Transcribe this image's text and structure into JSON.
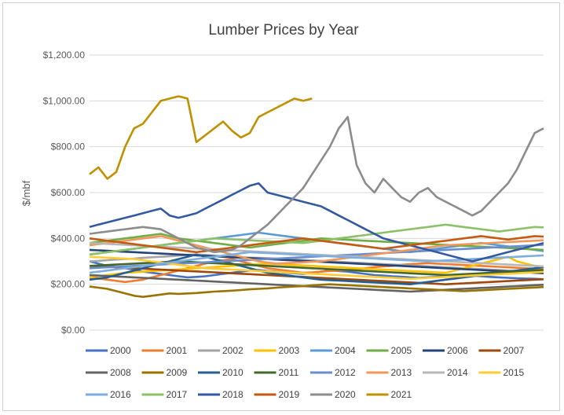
{
  "chart_data": {
    "type": "line",
    "title": "Lumber Prices by Year",
    "ylabel": "$/mbf",
    "xlabel": "",
    "ylim": [
      0,
      1200
    ],
    "y_ticks": [
      "$0.00",
      "$200.00",
      "$400.00",
      "$600.00",
      "$800.00",
      "$1,000.00",
      "$1,200.00"
    ],
    "y_tick_values": [
      0,
      200,
      400,
      600,
      800,
      1000,
      1200
    ],
    "x_range": [
      1,
      52
    ],
    "grid": true,
    "legend_position": "bottom",
    "series": [
      {
        "name": "2000",
        "color": "#4472c4",
        "values": [
          300,
          290,
          280,
          275,
          270,
          265,
          255,
          250,
          245,
          240,
          235,
          230,
          232,
          235,
          240,
          245,
          250,
          255,
          260,
          262,
          258,
          255,
          250,
          248,
          245,
          250,
          255,
          260,
          258,
          255,
          250,
          245,
          240,
          238,
          235,
          233,
          230,
          228,
          230,
          232,
          235,
          238,
          240,
          238,
          235,
          232,
          230,
          228,
          226,
          225,
          224,
          222
        ]
      },
      {
        "name": "2001",
        "color": "#ed7d31",
        "values": [
          230,
          225,
          220,
          215,
          210,
          215,
          220,
          230,
          240,
          250,
          260,
          270,
          280,
          290,
          300,
          305,
          310,
          300,
          290,
          280,
          270,
          265,
          260,
          255,
          250,
          252,
          255,
          258,
          260,
          262,
          265,
          270,
          275,
          278,
          280,
          285,
          288,
          290,
          292,
          290,
          288,
          286,
          284,
          282,
          280,
          278,
          276,
          274,
          272,
          270,
          268,
          266
        ]
      },
      {
        "name": "2002",
        "color": "#a5a5a5",
        "values": [
          300,
          302,
          305,
          308,
          310,
          312,
          315,
          318,
          320,
          322,
          325,
          328,
          330,
          328,
          325,
          322,
          320,
          318,
          316,
          315,
          314,
          312,
          310,
          308,
          306,
          304,
          302,
          300,
          298,
          296,
          294,
          292,
          290,
          288,
          286,
          284,
          282,
          280,
          278,
          276,
          274,
          272,
          270,
          268,
          266,
          264,
          262,
          260,
          258,
          256,
          254,
          252
        ]
      },
      {
        "name": "2003",
        "color": "#ffc000",
        "values": [
          230,
          235,
          240,
          245,
          250,
          252,
          255,
          258,
          260,
          262,
          265,
          268,
          270,
          272,
          275,
          278,
          280,
          282,
          285,
          288,
          290,
          288,
          286,
          284,
          282,
          280,
          278,
          276,
          274,
          272,
          270,
          268,
          266,
          264,
          262,
          260,
          258,
          256,
          254,
          252,
          250,
          260,
          270,
          280,
          290,
          300,
          310,
          320,
          300,
          290,
          280,
          270
        ]
      },
      {
        "name": "2004",
        "color": "#5b9bd5",
        "values": [
          330,
          335,
          340,
          345,
          350,
          355,
          360,
          365,
          370,
          375,
          380,
          385,
          390,
          395,
          400,
          405,
          410,
          415,
          420,
          425,
          420,
          415,
          410,
          405,
          400,
          395,
          390,
          385,
          380,
          375,
          370,
          365,
          360,
          355,
          350,
          345,
          340,
          345,
          350,
          355,
          360,
          365,
          370,
          375,
          380,
          375,
          370,
          365,
          360,
          355,
          350,
          345
        ]
      },
      {
        "name": "2005",
        "color": "#70ad47",
        "values": [
          380,
          385,
          390,
          395,
          400,
          405,
          410,
          415,
          420,
          410,
          400,
          395,
          390,
          385,
          380,
          375,
          370,
          365,
          360,
          365,
          370,
          375,
          380,
          385,
          390,
          395,
          400,
          398,
          396,
          394,
          392,
          390,
          388,
          386,
          384,
          382,
          380,
          378,
          376,
          374,
          372,
          370,
          368,
          366,
          364,
          362,
          360,
          358,
          356,
          354,
          352,
          350
        ]
      },
      {
        "name": "2006",
        "color": "#264478",
        "values": [
          350,
          348,
          346,
          344,
          342,
          340,
          338,
          336,
          334,
          332,
          330,
          328,
          326,
          324,
          322,
          320,
          318,
          316,
          314,
          312,
          310,
          308,
          306,
          304,
          302,
          300,
          298,
          296,
          294,
          292,
          290,
          288,
          286,
          284,
          282,
          280,
          278,
          276,
          274,
          272,
          270,
          268,
          266,
          264,
          262,
          260,
          258,
          256,
          254,
          252,
          250,
          248
        ]
      },
      {
        "name": "2007",
        "color": "#9e480e",
        "values": [
          280,
          278,
          276,
          274,
          272,
          270,
          268,
          266,
          264,
          262,
          260,
          258,
          256,
          254,
          252,
          250,
          248,
          246,
          244,
          242,
          240,
          238,
          236,
          234,
          232,
          230,
          228,
          226,
          224,
          222,
          220,
          218,
          216,
          214,
          212,
          210,
          208,
          206,
          204,
          202,
          200,
          202,
          204,
          206,
          208,
          210,
          212,
          214,
          216,
          218,
          220,
          222
        ]
      },
      {
        "name": "2008",
        "color": "#636363",
        "values": [
          240,
          238,
          236,
          234,
          232,
          230,
          228,
          226,
          224,
          222,
          220,
          218,
          216,
          214,
          212,
          210,
          208,
          206,
          204,
          202,
          200,
          198,
          196,
          194,
          192,
          190,
          188,
          186,
          184,
          182,
          180,
          178,
          176,
          174,
          172,
          170,
          168,
          170,
          172,
          174,
          176,
          178,
          180,
          182,
          184,
          186,
          188,
          190,
          192,
          194,
          196,
          198
        ]
      },
      {
        "name": "2009",
        "color": "#997300",
        "values": [
          190,
          185,
          180,
          170,
          160,
          150,
          145,
          150,
          155,
          160,
          158,
          160,
          162,
          165,
          168,
          170,
          172,
          175,
          178,
          180,
          182,
          185,
          188,
          190,
          192,
          195,
          198,
          200,
          198,
          196,
          194,
          192,
          190,
          188,
          186,
          184,
          182,
          180,
          178,
          176,
          174,
          172,
          170,
          172,
          174,
          176,
          178,
          180,
          182,
          184,
          186,
          188
        ]
      },
      {
        "name": "2010",
        "color": "#255e91",
        "values": [
          220,
          225,
          230,
          240,
          250,
          260,
          270,
          280,
          290,
          300,
          310,
          320,
          330,
          320,
          310,
          300,
          290,
          280,
          270,
          260,
          250,
          245,
          240,
          235,
          230,
          225,
          220,
          218,
          216,
          214,
          212,
          210,
          208,
          206,
          204,
          202,
          200,
          205,
          210,
          215,
          220,
          225,
          230,
          235,
          240,
          245,
          250,
          255,
          260,
          265,
          270,
          275
        ]
      },
      {
        "name": "2011",
        "color": "#43682b",
        "values": [
          280,
          282,
          284,
          286,
          288,
          290,
          292,
          294,
          296,
          298,
          300,
          298,
          296,
          294,
          292,
          290,
          288,
          286,
          284,
          282,
          280,
          278,
          276,
          274,
          272,
          270,
          268,
          266,
          264,
          262,
          260,
          258,
          256,
          254,
          252,
          250,
          248,
          246,
          244,
          242,
          240,
          242,
          244,
          246,
          248,
          250,
          252,
          254,
          256,
          258,
          260,
          262
        ]
      },
      {
        "name": "2012",
        "color": "#698ed0",
        "values": [
          270,
          272,
          274,
          276,
          278,
          280,
          282,
          284,
          286,
          288,
          290,
          292,
          294,
          296,
          298,
          300,
          302,
          304,
          306,
          308,
          310,
          312,
          314,
          316,
          318,
          320,
          322,
          324,
          326,
          328,
          330,
          332,
          334,
          336,
          338,
          340,
          342,
          344,
          346,
          348,
          350,
          352,
          354,
          356,
          358,
          360,
          362,
          364,
          366,
          368,
          370,
          372
        ]
      },
      {
        "name": "2013",
        "color": "#f1975a",
        "values": [
          370,
          375,
          380,
          385,
          390,
          395,
          400,
          405,
          410,
          400,
          390,
          380,
          370,
          360,
          350,
          340,
          330,
          320,
          310,
          300,
          295,
          290,
          292,
          294,
          296,
          298,
          300,
          305,
          310,
          315,
          320,
          325,
          330,
          335,
          340,
          345,
          350,
          355,
          360,
          365,
          370,
          372,
          374,
          376,
          378,
          380,
          382,
          384,
          386,
          388,
          390,
          392
        ]
      },
      {
        "name": "2014",
        "color": "#b7b7b7",
        "values": [
          380,
          378,
          376,
          374,
          372,
          370,
          368,
          366,
          364,
          362,
          360,
          358,
          356,
          354,
          352,
          350,
          348,
          346,
          344,
          342,
          340,
          338,
          336,
          334,
          332,
          330,
          328,
          326,
          324,
          322,
          320,
          318,
          316,
          314,
          312,
          310,
          308,
          306,
          304,
          302,
          300,
          298,
          296,
          294,
          292,
          290,
          288,
          286,
          284,
          282,
          280,
          278
        ]
      },
      {
        "name": "2015",
        "color": "#ffcd33",
        "values": [
          320,
          318,
          316,
          314,
          312,
          310,
          305,
          300,
          295,
          290,
          285,
          280,
          275,
          270,
          268,
          266,
          264,
          262,
          260,
          258,
          256,
          254,
          252,
          250,
          248,
          246,
          244,
          242,
          240,
          238,
          236,
          234,
          232,
          230,
          228,
          226,
          224,
          226,
          228,
          230,
          232,
          234,
          236,
          238,
          240,
          242,
          244,
          246,
          248,
          250,
          252,
          254
        ]
      },
      {
        "name": "2016",
        "color": "#7cafdd",
        "values": [
          250,
          255,
          260,
          265,
          270,
          275,
          280,
          285,
          290,
          295,
          300,
          305,
          310,
          315,
          320,
          325,
          330,
          335,
          340,
          338,
          336,
          334,
          332,
          330,
          328,
          326,
          324,
          322,
          320,
          318,
          316,
          314,
          312,
          310,
          308,
          306,
          304,
          302,
          300,
          302,
          304,
          306,
          308,
          310,
          312,
          314,
          316,
          318,
          320,
          322,
          324,
          326
        ]
      },
      {
        "name": "2017",
        "color": "#8cc168",
        "values": [
          330,
          335,
          340,
          345,
          350,
          355,
          360,
          365,
          370,
          375,
          380,
          385,
          390,
          395,
          400,
          398,
          396,
          394,
          392,
          390,
          388,
          386,
          384,
          382,
          380,
          385,
          390,
          395,
          400,
          405,
          410,
          415,
          420,
          425,
          430,
          435,
          440,
          445,
          450,
          455,
          460,
          455,
          450,
          445,
          440,
          435,
          430,
          435,
          440,
          445,
          450,
          448
        ]
      },
      {
        "name": "2018",
        "color": "#335aa1",
        "values": [
          450,
          460,
          470,
          480,
          490,
          500,
          510,
          520,
          530,
          500,
          490,
          500,
          510,
          530,
          550,
          570,
          590,
          610,
          630,
          640,
          600,
          590,
          580,
          570,
          560,
          550,
          540,
          520,
          500,
          480,
          460,
          440,
          420,
          400,
          390,
          380,
          370,
          360,
          350,
          340,
          330,
          320,
          310,
          300,
          310,
          320,
          330,
          340,
          350,
          360,
          370,
          380
        ]
      },
      {
        "name": "2019",
        "color": "#c55a11",
        "values": [
          400,
          395,
          390,
          385,
          380,
          375,
          370,
          365,
          360,
          355,
          350,
          345,
          340,
          345,
          350,
          355,
          360,
          365,
          370,
          375,
          380,
          385,
          390,
          395,
          400,
          395,
          390,
          385,
          380,
          375,
          370,
          365,
          360,
          355,
          360,
          365,
          370,
          375,
          380,
          385,
          390,
          395,
          400,
          405,
          410,
          405,
          400,
          395,
          400,
          405,
          410,
          408
        ]
      },
      {
        "name": "2020",
        "color": "#8c8c8c",
        "values": [
          420,
          425,
          430,
          435,
          440,
          445,
          450,
          445,
          440,
          420,
          400,
          380,
          360,
          350,
          340,
          345,
          350,
          370,
          400,
          430,
          460,
          500,
          540,
          580,
          620,
          680,
          740,
          800,
          880,
          930,
          720,
          640,
          600,
          660,
          620,
          580,
          560,
          600,
          620,
          580,
          560,
          540,
          520,
          500,
          520,
          560,
          600,
          640,
          700,
          780,
          860,
          880
        ]
      },
      {
        "name": "2021",
        "color": "#bf9000",
        "values": [
          680,
          710,
          660,
          690,
          800,
          880,
          900,
          950,
          1000,
          1010,
          1020,
          1010,
          820,
          850,
          880,
          910,
          870,
          840,
          860,
          930,
          950,
          970,
          990,
          1010,
          1000,
          1010
        ]
      }
    ]
  }
}
